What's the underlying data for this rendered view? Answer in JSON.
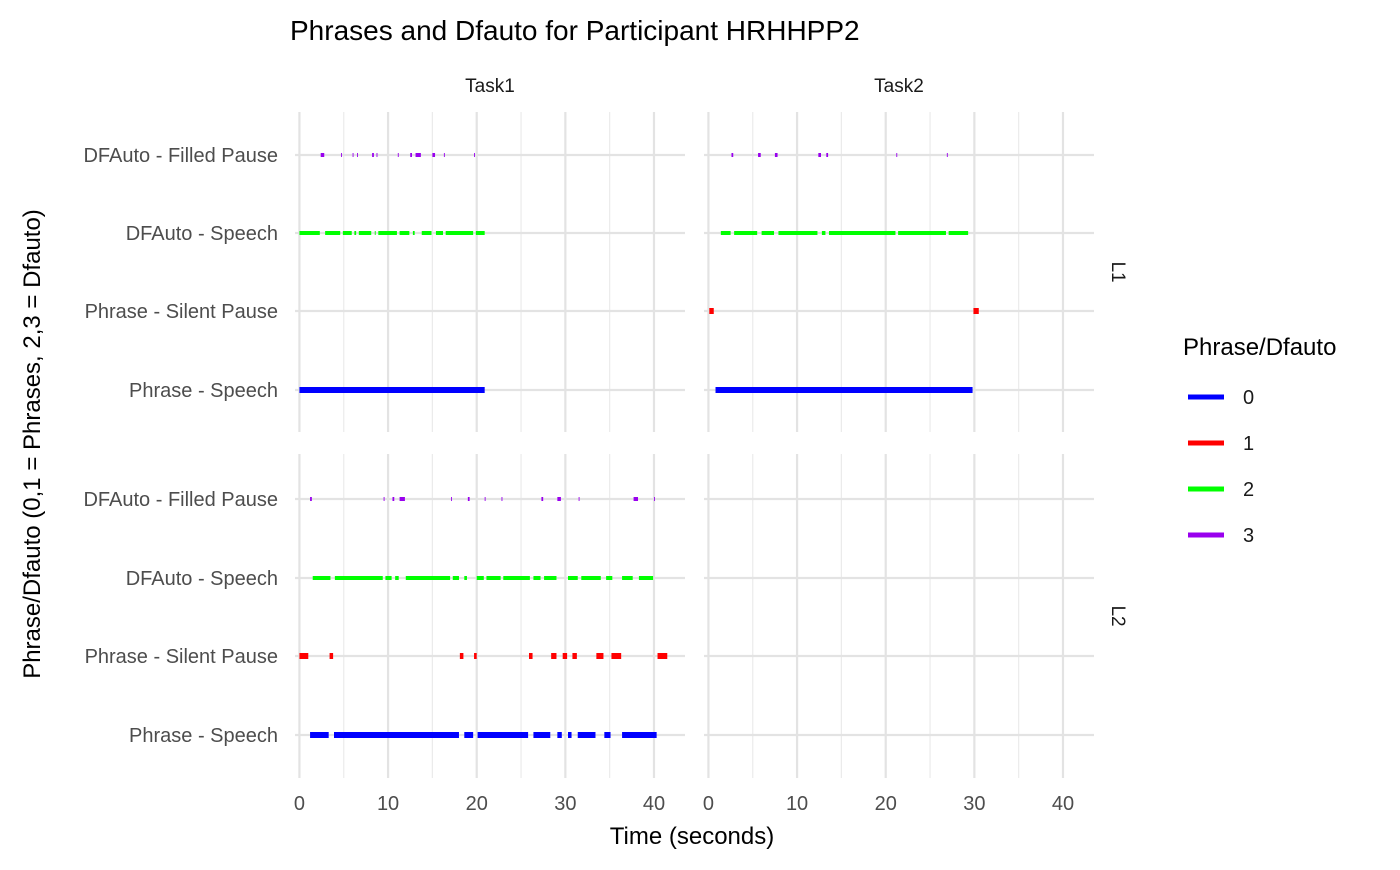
{
  "chart_data": {
    "type": "segment",
    "title": "Phrases and Dfauto for Participant HRHHPP2",
    "xlabel": "Time (seconds)",
    "ylabel": "Phrase/Dfauto (0,1 = Phrases, 2,3 = Dfauto)",
    "xlim": [
      -0.5,
      43.5
    ],
    "xticks": [
      0,
      10,
      20,
      30,
      40
    ],
    "xtick_labels": [
      "0",
      "10",
      "20",
      "30",
      "40"
    ],
    "categories": [
      "DFAuto - Filled Pause",
      "DFAuto - Speech",
      "Phrase - Silent Pause",
      "Phrase - Speech"
    ],
    "facet_columns": [
      "Task1",
      "Task2"
    ],
    "facet_rows": [
      "L1",
      "L2"
    ],
    "legend": {
      "title": "Phrase/Dfauto",
      "position": "right",
      "items": [
        {
          "label": "0",
          "color": "#0000FF"
        },
        {
          "label": "1",
          "color": "#FF0000"
        },
        {
          "label": "2",
          "color": "#00FF00"
        },
        {
          "label": "3",
          "color": "#9900EE"
        }
      ]
    },
    "grid": true,
    "panels": [
      {
        "col": "Task1",
        "row": "L1",
        "series": [
          {
            "category": "DFAuto - Filled Pause",
            "level": 3,
            "segments": [
              [
                2.4,
                2.8
              ],
              [
                4.7,
                4.8
              ],
              [
                6.0,
                6.1
              ],
              [
                6.5,
                6.6
              ],
              [
                8.2,
                8.4
              ],
              [
                8.7,
                8.8
              ],
              [
                11.1,
                11.2
              ],
              [
                12.5,
                12.7
              ],
              [
                13.1,
                13.7
              ],
              [
                15.0,
                15.3
              ],
              [
                16.3,
                16.4
              ],
              [
                19.7,
                19.8
              ]
            ]
          },
          {
            "category": "DFAuto - Speech",
            "level": 2,
            "segments": [
              [
                0,
                2.3
              ],
              [
                2.9,
                4.6
              ],
              [
                4.9,
                5.9
              ],
              [
                6.2,
                6.4
              ],
              [
                6.7,
                8.1
              ],
              [
                8.5,
                8.6
              ],
              [
                8.9,
                11.0
              ],
              [
                11.3,
                12.4
              ],
              [
                12.8,
                13.0
              ],
              [
                13.8,
                14.9
              ],
              [
                15.4,
                16.2
              ],
              [
                16.5,
                19.6
              ],
              [
                19.9,
                20.9
              ]
            ]
          },
          {
            "category": "Phrase - Speech",
            "level": 0,
            "segments": [
              [
                0,
                20.9
              ]
            ]
          }
        ]
      },
      {
        "col": "Task2",
        "row": "L1",
        "series": [
          {
            "category": "DFAuto - Filled Pause",
            "level": 3,
            "segments": [
              [
                2.6,
                2.8
              ],
              [
                5.6,
                5.9
              ],
              [
                7.5,
                7.8
              ],
              [
                12.4,
                12.7
              ],
              [
                13.3,
                13.5
              ],
              [
                21.2,
                21.3
              ],
              [
                26.9,
                27.0
              ]
            ]
          },
          {
            "category": "DFAuto - Speech",
            "level": 2,
            "segments": [
              [
                1.4,
                2.5
              ],
              [
                2.9,
                5.5
              ],
              [
                6.0,
                7.4
              ],
              [
                7.9,
                12.3
              ],
              [
                12.8,
                13.2
              ],
              [
                13.6,
                21.1
              ],
              [
                21.4,
                26.8
              ],
              [
                27.1,
                29.3
              ]
            ]
          },
          {
            "category": "Phrase - Silent Pause",
            "level": 1,
            "segments": [
              [
                0.1,
                0.6
              ],
              [
                29.9,
                30.5
              ]
            ]
          },
          {
            "category": "Phrase - Speech",
            "level": 0,
            "segments": [
              [
                0.8,
                29.8
              ]
            ]
          }
        ]
      },
      {
        "col": "Task1",
        "row": "L2",
        "series": [
          {
            "category": "DFAuto - Filled Pause",
            "level": 3,
            "segments": [
              [
                1.2,
                1.4
              ],
              [
                9.5,
                9.6
              ],
              [
                10.5,
                10.7
              ],
              [
                11.3,
                11.9
              ],
              [
                17.1,
                17.2
              ],
              [
                19.0,
                19.2
              ],
              [
                20.9,
                21.0
              ],
              [
                22.8,
                22.9
              ],
              [
                27.3,
                27.5
              ],
              [
                29.1,
                29.5
              ],
              [
                31.5,
                31.6
              ],
              [
                37.7,
                38.2
              ],
              [
                40.0,
                40.1
              ]
            ]
          },
          {
            "category": "DFAuto - Speech",
            "level": 2,
            "segments": [
              [
                1.5,
                3.5
              ],
              [
                4.0,
                9.4
              ],
              [
                9.7,
                10.4
              ],
              [
                10.8,
                11.2
              ],
              [
                12.0,
                17.0
              ],
              [
                17.3,
                18.0
              ],
              [
                18.6,
                18.9
              ],
              [
                20.0,
                20.8
              ],
              [
                21.1,
                22.7
              ],
              [
                23.0,
                26.0
              ],
              [
                26.4,
                27.2
              ],
              [
                27.6,
                29.0
              ],
              [
                30.3,
                31.4
              ],
              [
                31.8,
                34.0
              ],
              [
                34.6,
                35.3
              ],
              [
                36.4,
                37.6
              ],
              [
                38.3,
                39.9
              ]
            ]
          },
          {
            "category": "Phrase - Silent Pause",
            "level": 1,
            "segments": [
              [
                0,
                1.0
              ],
              [
                3.4,
                3.8
              ],
              [
                18.1,
                18.5
              ],
              [
                19.7,
                20.0
              ],
              [
                25.9,
                26.3
              ],
              [
                28.4,
                29.0
              ],
              [
                29.7,
                30.2
              ],
              [
                30.8,
                31.3
              ],
              [
                33.5,
                34.3
              ],
              [
                35.2,
                36.3
              ],
              [
                40.4,
                41.5
              ]
            ]
          },
          {
            "category": "Phrase - Speech",
            "level": 0,
            "segments": [
              [
                1.2,
                3.3
              ],
              [
                3.9,
                18.0
              ],
              [
                18.6,
                19.6
              ],
              [
                20.1,
                25.8
              ],
              [
                26.4,
                28.3
              ],
              [
                29.1,
                29.6
              ],
              [
                30.3,
                30.7
              ],
              [
                31.4,
                33.4
              ],
              [
                34.4,
                35.1
              ],
              [
                36.4,
                40.3
              ]
            ]
          }
        ]
      },
      {
        "col": "Task2",
        "row": "L2",
        "series": []
      }
    ]
  }
}
